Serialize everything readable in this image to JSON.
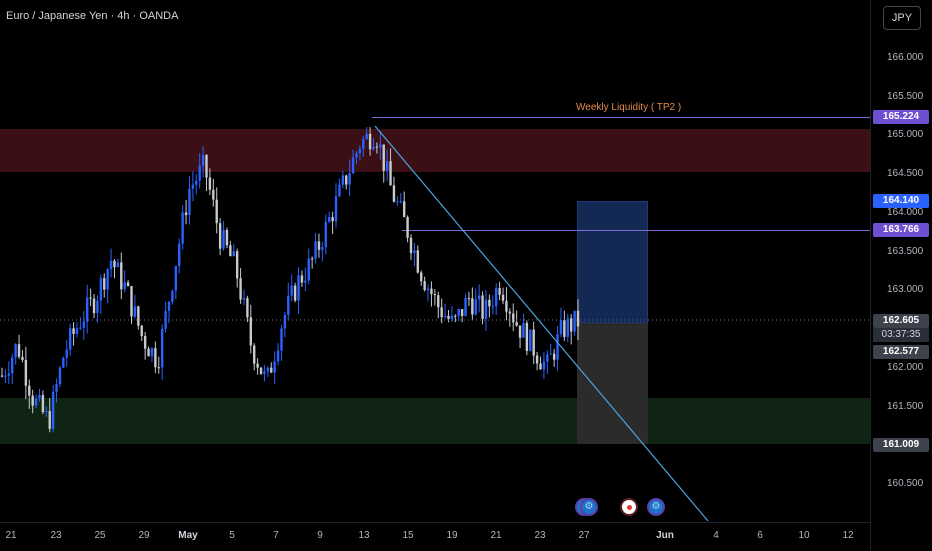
{
  "header": {
    "title": "Euro / Japanese Yen · 4h · OANDA"
  },
  "currency_button": "JPY",
  "price_axis": {
    "ticks": [
      "166.000",
      "165.500",
      "165.000",
      "164.500",
      "164.000",
      "163.500",
      "163.000",
      "162.500",
      "162.000",
      "161.500",
      "161.000",
      "160.500"
    ],
    "labels": {
      "weekly_liquidity": "165.224",
      "target": "164.140",
      "level": "163.766",
      "last_price": "162.605",
      "countdown": "03:37:35",
      "entry": "162.577",
      "stop": "161.009"
    }
  },
  "time_axis": {
    "labels": [
      {
        "text": "21",
        "bold": false
      },
      {
        "text": "23",
        "bold": false
      },
      {
        "text": "25",
        "bold": false
      },
      {
        "text": "29",
        "bold": false
      },
      {
        "text": "May",
        "bold": true
      },
      {
        "text": "5",
        "bold": false
      },
      {
        "text": "7",
        "bold": false
      },
      {
        "text": "9",
        "bold": false
      },
      {
        "text": "13",
        "bold": false
      },
      {
        "text": "15",
        "bold": false
      },
      {
        "text": "19",
        "bold": false
      },
      {
        "text": "21",
        "bold": false
      },
      {
        "text": "23",
        "bold": false
      },
      {
        "text": "27",
        "bold": false
      },
      {
        "text": "Jun",
        "bold": true
      },
      {
        "text": "4",
        "bold": false
      },
      {
        "text": "6",
        "bold": false
      },
      {
        "text": "10",
        "bold": false
      },
      {
        "text": "12",
        "bold": false
      }
    ]
  },
  "annotations": {
    "weekly_liquidity_label": "Weekly Liquidity ( TP2 )"
  },
  "colors": {
    "bull_candle": "#2962ff",
    "bear_candle": "#c8cad0",
    "supply_zone": "#3a1015",
    "demand_zone": "#102414",
    "trendline": "#4aa3e0",
    "liquidity_line": "#7d69d6"
  },
  "events": [
    "event-icon",
    "event-icon",
    "event-icon",
    "event-icon"
  ],
  "chart_data": {
    "type": "candlestick",
    "title": "Euro / Japanese Yen · 4h · OANDA",
    "ylim": [
      160.2,
      166.6
    ],
    "x": [
      "21",
      "23",
      "25",
      "29",
      "May",
      "5",
      "7",
      "9",
      "13",
      "15",
      "19",
      "21",
      "23",
      "27",
      "Jun",
      "4",
      "6",
      "10",
      "12"
    ],
    "close_path": [
      161.9,
      162.3,
      161.6,
      161.3,
      162.2,
      162.6,
      162.9,
      163.4,
      163.0,
      162.4,
      162.1,
      163.2,
      164.3,
      164.6,
      163.7,
      163.3,
      162.3,
      161.8,
      162.6,
      163.1,
      163.4,
      163.9,
      164.4,
      164.9,
      165.05,
      164.3,
      163.8,
      163.2,
      162.8,
      162.55,
      162.9,
      162.7,
      163.1,
      162.6,
      162.3,
      162.0,
      162.5,
      162.6
    ],
    "last_price": 162.605,
    "levels": [
      165.224,
      163.766
    ],
    "zones": [
      {
        "low": 164.5,
        "high": 165.05
      },
      {
        "low": 161.05,
        "high": 161.6
      }
    ],
    "position": {
      "entry": 162.577,
      "target": 164.14,
      "stop": 161.009
    }
  }
}
